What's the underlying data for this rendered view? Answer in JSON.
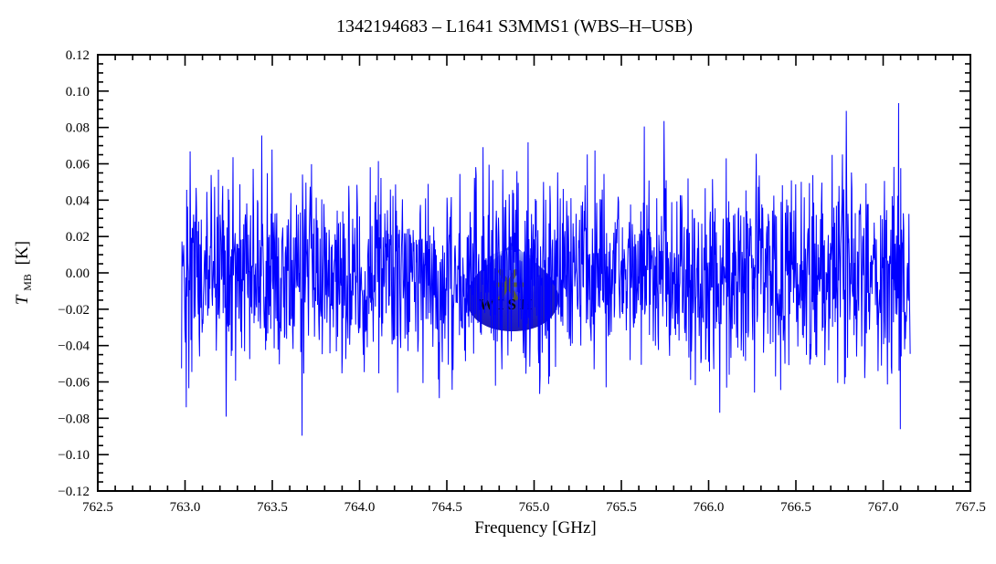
{
  "title": "1342194683 – L1641 S3MMS1 (WBS–H–USB)",
  "axes": {
    "xlabel": "Frequency [GHz]",
    "ylabel": {
      "symbol": "T",
      "subscript": "MB",
      "unit": "[K]"
    },
    "xlim": [
      762.5,
      767.5
    ],
    "ylim": [
      -0.12,
      0.12
    ],
    "x_tick_values": [
      762.5,
      763.0,
      763.5,
      764.0,
      764.5,
      765.0,
      765.5,
      766.0,
      766.5,
      767.0,
      767.5
    ],
    "x_tick_labels": [
      "762.5",
      "763.0",
      "763.5",
      "764.0",
      "764.5",
      "765.0",
      "765.5",
      "766.0",
      "766.5",
      "767.0",
      "767.5"
    ],
    "y_tick_values": [
      0.12,
      0.1,
      0.08,
      0.06,
      0.04,
      0.02,
      0.0,
      -0.02,
      -0.04,
      -0.06,
      -0.08,
      -0.1,
      -0.12
    ],
    "y_tick_labels": [
      "0.12",
      "0.10",
      "0.08",
      "0.06",
      "0.04",
      "0.02",
      "0.00",
      "−0.02",
      "−0.04",
      "−0.06",
      "−0.08",
      "−0.10",
      "−0.12"
    ],
    "x_minor_step": 0.1,
    "y_minor_step": 0.005,
    "frame_color": "#000000"
  },
  "chart_data": {
    "type": "line",
    "title": "1342194683 – L1641 S3MMS1 (WBS–H–USB)",
    "xlabel": "Frequency [GHz]",
    "ylabel": "T_MB [K]",
    "xlim": [
      762.5,
      767.5
    ],
    "ylim": [
      -0.12,
      0.12
    ],
    "grid": false,
    "legend": "none",
    "description": "Featureless noise spectrum (no detected line): dense Gaussian noise about a 0.0 K baseline, dense band within about ±0.03 K, frequent excursions to ±0.06 K, occasional spikes reaching about ±0.11 K (max ~0.109 K near 766.6 GHz, min ~-0.11 K near 763.8 GHz)",
    "series": [
      {
        "name": "WBS-H-USB spectrum",
        "color": "#0000ff",
        "x_start": 762.98,
        "x_end": 767.155,
        "n_points": 1700,
        "baseline": 0.0,
        "noise_sigma": 0.027,
        "clip_abs": 0.112,
        "seed": 1342194683
      }
    ]
  },
  "watermark": {
    "text": "WISH",
    "drop_color_top": "#6f8df2",
    "drop_color_mid": "#1b18d6",
    "drop_color_edge": "#0e0aa8",
    "gloss_color": "#aebff8",
    "star_color": "#55591f",
    "text_color": "#a89a28",
    "opacity": 0.95
  }
}
